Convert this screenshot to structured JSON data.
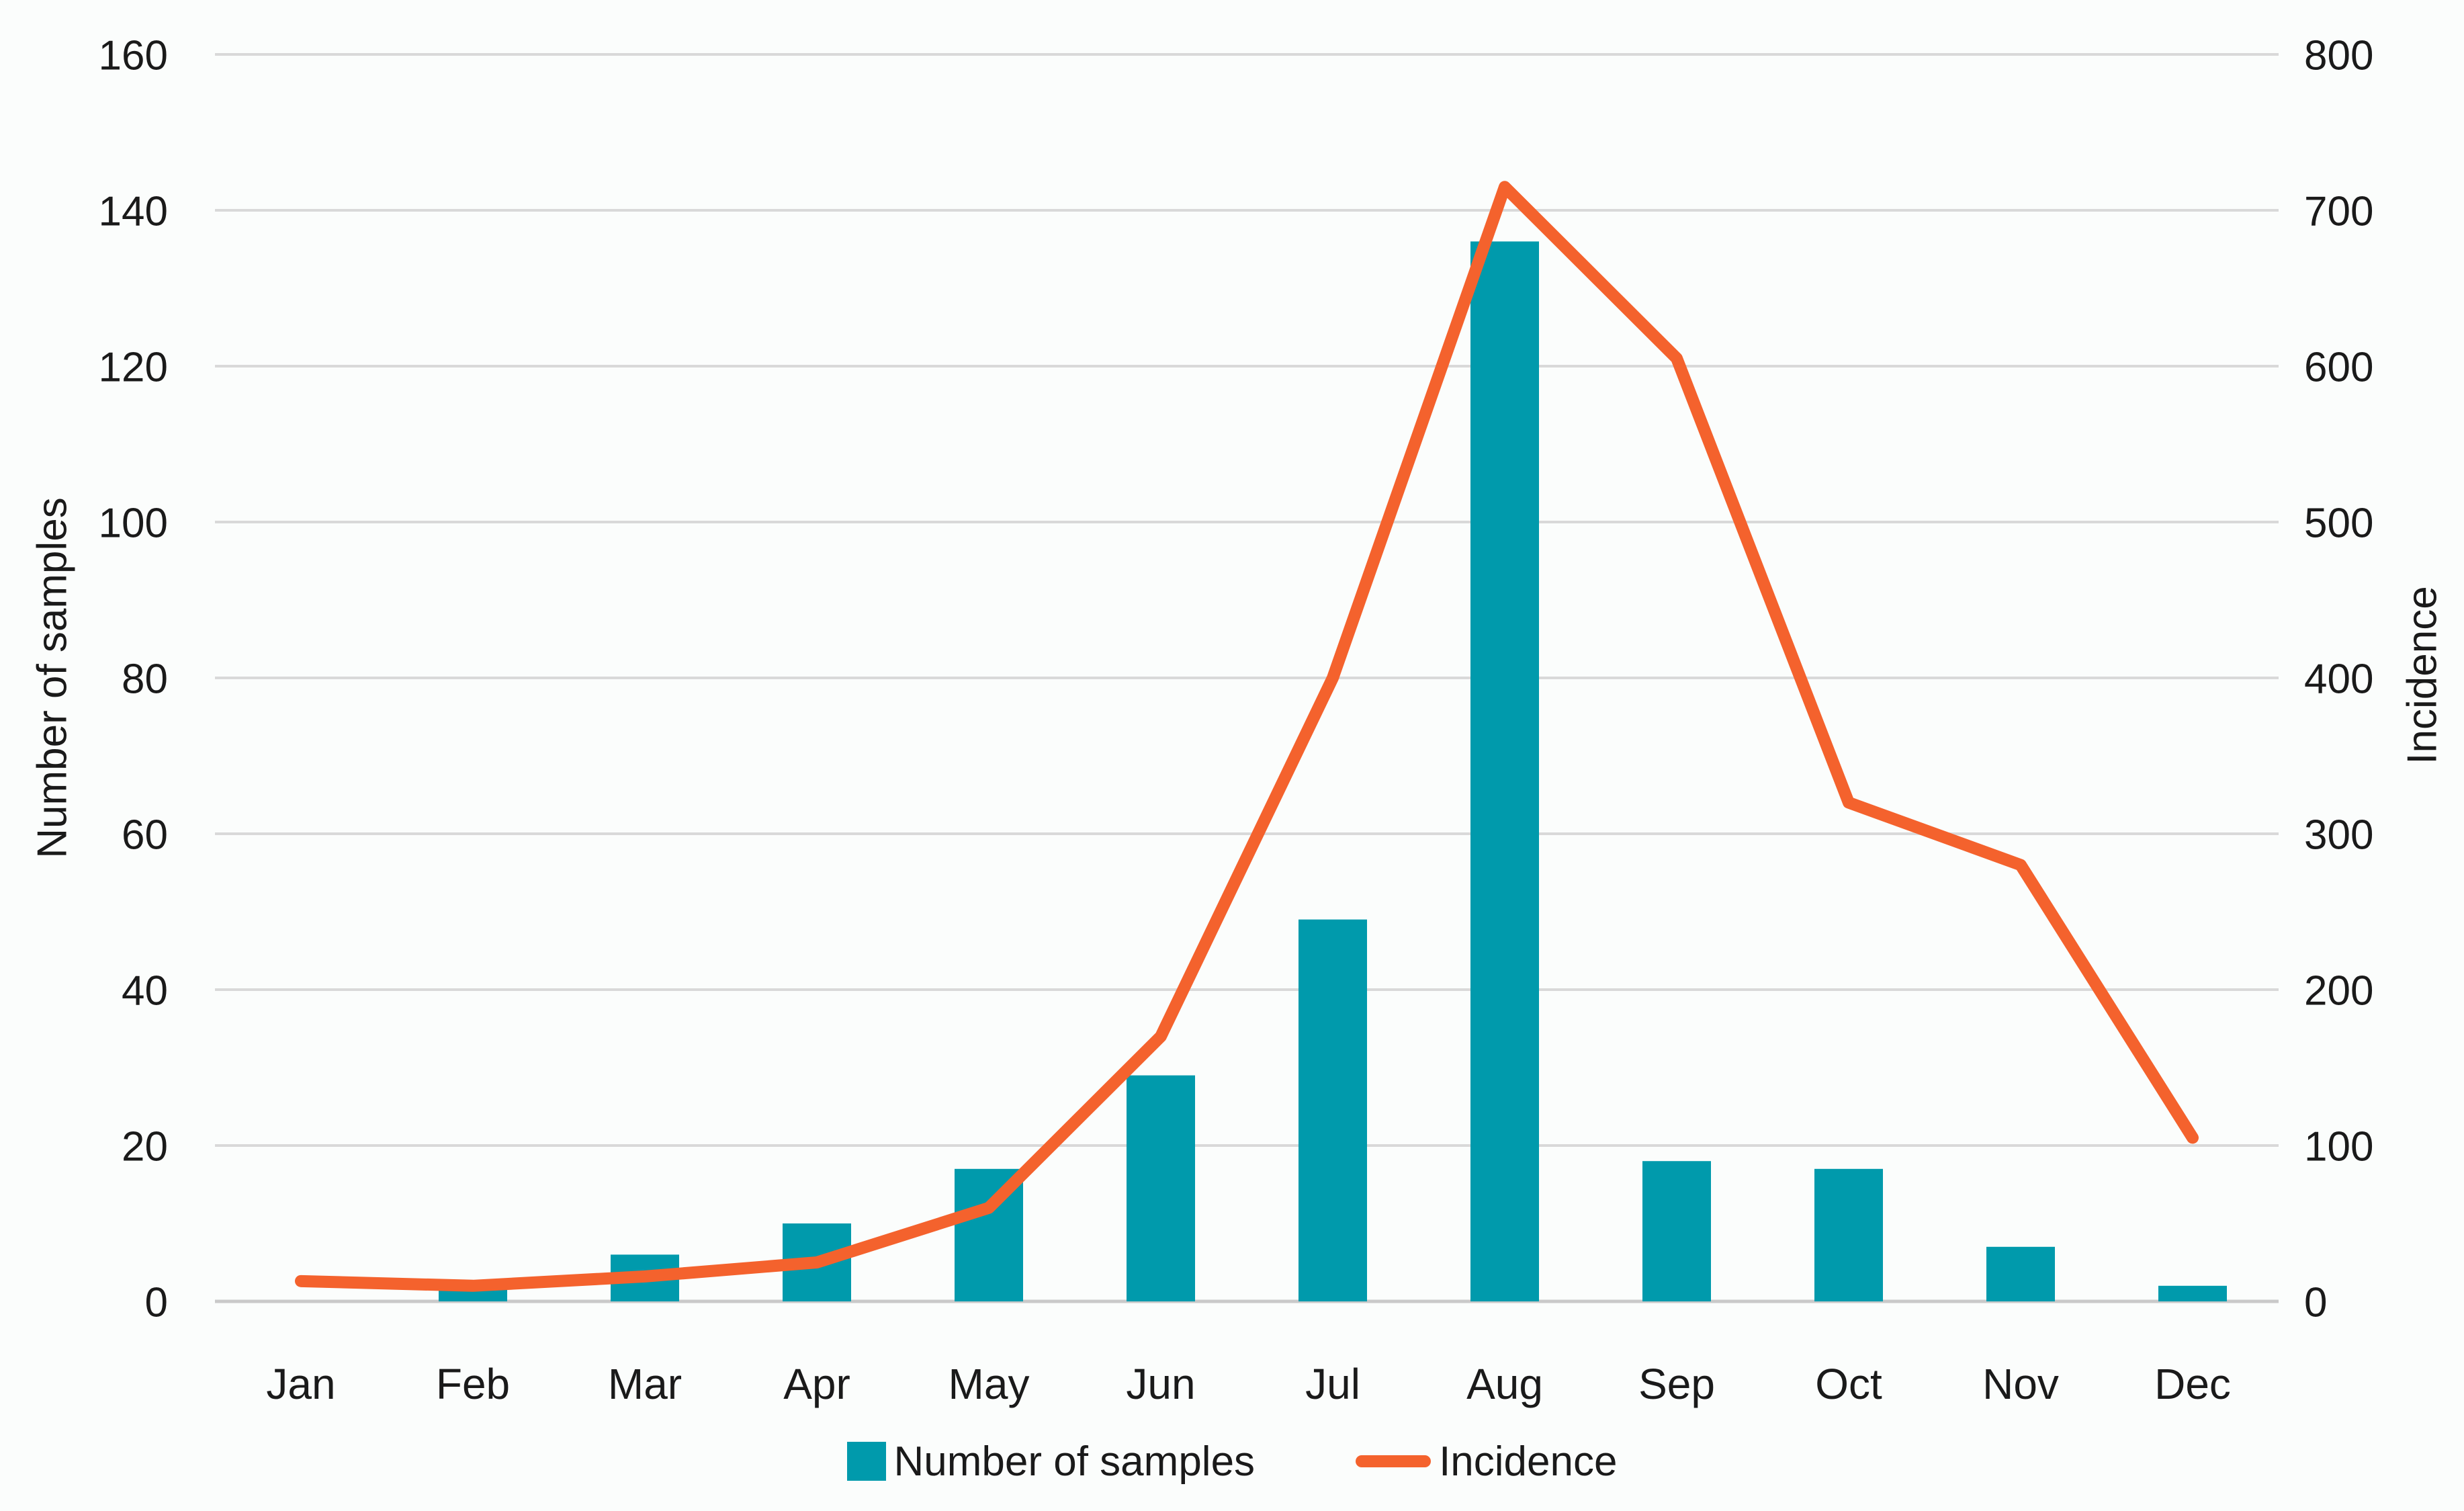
{
  "chart_data": {
    "type": "combo-bar-line",
    "title": "",
    "categories": [
      "Jan",
      "Feb",
      "Mar",
      "Apr",
      "May",
      "Jun",
      "Jul",
      "Aug",
      "Sep",
      "Oct",
      "Nov",
      "Dec"
    ],
    "series": [
      {
        "name": "Number of samples",
        "type": "bar",
        "axis": "left",
        "values": [
          0,
          2,
          6,
          10,
          17,
          29,
          49,
          136,
          18,
          17,
          7,
          2
        ]
      },
      {
        "name": "Incidence",
        "type": "line",
        "axis": "right",
        "values": [
          13,
          10,
          16,
          25,
          60,
          170,
          400,
          715,
          605,
          320,
          280,
          105
        ]
      }
    ],
    "left_axis": {
      "title": "Number of samples",
      "min": 0,
      "max": 160,
      "step": 20,
      "tick_labels": [
        "0",
        "20",
        "40",
        "60",
        "80",
        "100",
        "120",
        "140",
        "160"
      ]
    },
    "right_axis": {
      "title": "Incidence",
      "min": 0,
      "max": 800,
      "step": 100,
      "tick_labels": [
        "0",
        "100",
        "200",
        "300",
        "400",
        "500",
        "600",
        "700",
        "800"
      ]
    },
    "grid": true,
    "legend_position": "bottom"
  },
  "legend": {
    "items": [
      {
        "label": "Number of samples",
        "swatch": "bar-square"
      },
      {
        "label": "Incidence",
        "swatch": "line-segment"
      }
    ]
  },
  "colors": {
    "bar": "#009aac",
    "line": "#f4622d",
    "grid": "#d9d9d9",
    "baseline": "#c9c9c9",
    "text": "#1a1a1a",
    "background": "#fbfdfc"
  }
}
